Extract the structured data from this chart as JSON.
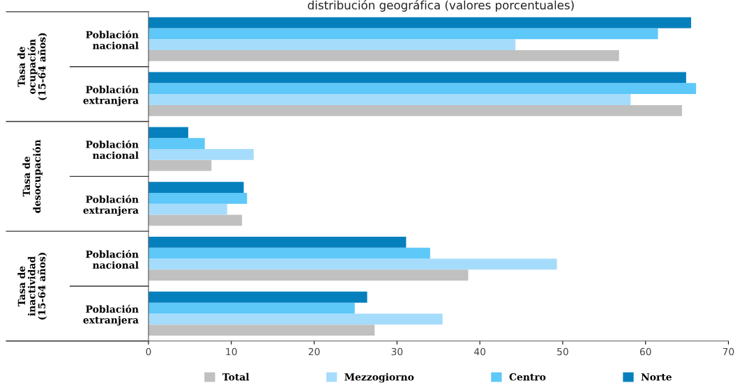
{
  "chart_data": {
    "type": "bar",
    "orientation": "horizontal",
    "title": "distribución geográfica (valores porcentuales)",
    "categories": [
      "Población\nnacional",
      "Población\nextranjera",
      "Población\nnacional",
      "Población\nextranjera",
      "Población\nnacional",
      "Población\nextranjera"
    ],
    "annotations": [
      "Tasa de\nocupación\n(15-64 años)",
      "Tasa de\ndesocupación",
      "Tasa de\ninactividad\n(15-64 años)"
    ],
    "series": [
      {
        "name": "Total",
        "color": "#c0c0c0",
        "values": [
          56.8,
          64.4,
          7.6,
          11.3,
          38.6,
          27.3
        ]
      },
      {
        "name": "Mezzogiorno",
        "color": "#a6dcfb",
        "values": [
          44.3,
          58.2,
          12.7,
          9.5,
          49.3,
          35.5
        ]
      },
      {
        "name": "Centro",
        "color": "#5ec8f8",
        "values": [
          61.5,
          66.1,
          6.8,
          11.9,
          34.0,
          24.9
        ]
      },
      {
        "name": "Norte",
        "color": "#0680bd",
        "values": [
          65.5,
          64.9,
          4.8,
          11.5,
          31.1,
          26.4
        ]
      }
    ],
    "xlim": [
      0,
      70
    ],
    "xticks": [
      0,
      10,
      20,
      30,
      40,
      50,
      60,
      70
    ],
    "grid": false,
    "legend": "bottom"
  }
}
